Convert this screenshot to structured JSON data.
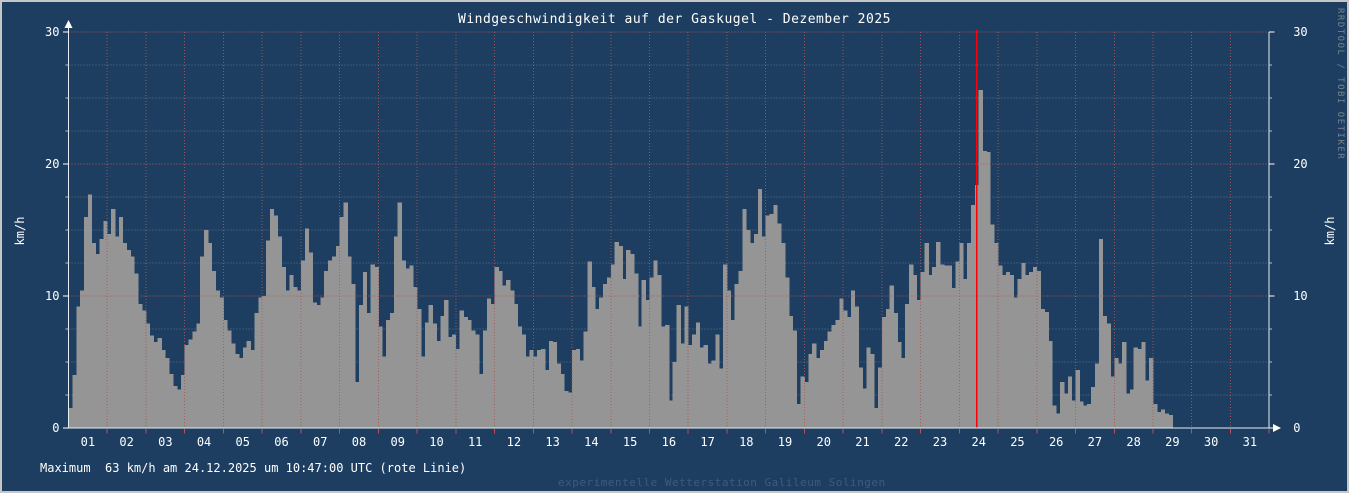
{
  "title": "Windgeschwindigkeit auf der Gaskugel - Dezember 2025",
  "y_axis": {
    "unit_label": "km/h",
    "major_ticks": [
      0,
      10,
      20,
      30
    ],
    "minor_step": 2.5,
    "max": 30
  },
  "x_axis": {
    "day_labels": [
      "01",
      "02",
      "03",
      "04",
      "05",
      "06",
      "07",
      "08",
      "09",
      "10",
      "11",
      "12",
      "13",
      "14",
      "15",
      "16",
      "17",
      "18",
      "19",
      "20",
      "21",
      "22",
      "23",
      "24",
      "25",
      "26",
      "27",
      "28",
      "29",
      "30",
      "31"
    ]
  },
  "footer": {
    "max_text": "Maximum  63 km/h am 24.12.2025 um 10:47:00 UTC (rote Linie)",
    "station_text": "experimentelle Wetterstation Galileum Solingen"
  },
  "watermark": "RRDTOOL / TOBI OETIKER",
  "colors": {
    "background": "#1d3e61",
    "border": "#c6c6c6",
    "area_fill": "#959595",
    "axis": "#e8eef2",
    "grid_minor": "#8b9fb3",
    "grid_major_red": "#c05858",
    "grid_day_red": "#a65959",
    "tick_red": "#cf4a4a",
    "max_line": "#fb0006",
    "text": "#ffffff",
    "station_text": "#3b5c80",
    "rrd_watermark": "#78848e"
  },
  "chart_data": {
    "type": "area",
    "title": "Windgeschwindigkeit auf der Gaskugel - Dezember 2025",
    "ylabel": "km/h",
    "ylim": [
      0,
      30
    ],
    "x_range_days": [
      0,
      31
    ],
    "grid": {
      "x_major_every_days": 1,
      "y_major_every": 10,
      "y_minor_every": 2.5,
      "style": "dotted"
    },
    "legend_position": "none",
    "sample_step_days": 0.1,
    "data_start_day": 0.0,
    "data_end_day": 28.45,
    "values_kmh": [
      1.5,
      4.0,
      9.2,
      10.4,
      16.0,
      17.7,
      14.0,
      13.2,
      14.3,
      15.7,
      14.7,
      16.6,
      14.5,
      16.0,
      14.0,
      13.5,
      13.0,
      11.7,
      9.4,
      8.9,
      7.9,
      7.0,
      6.5,
      6.8,
      5.9,
      5.3,
      4.1,
      3.2,
      2.9,
      4.0,
      6.3,
      6.7,
      7.3,
      7.9,
      13.0,
      15.0,
      14.0,
      11.9,
      10.4,
      9.9,
      8.2,
      7.4,
      6.4,
      5.6,
      5.3,
      6.1,
      6.6,
      5.9,
      8.7,
      9.9,
      10.0,
      14.2,
      16.6,
      16.1,
      14.5,
      12.2,
      10.4,
      11.6,
      10.7,
      10.4,
      12.7,
      15.1,
      13.3,
      9.5,
      9.3,
      9.9,
      11.9,
      12.7,
      13.0,
      13.8,
      16.0,
      17.1,
      13.0,
      10.9,
      3.5,
      9.3,
      11.8,
      8.7,
      12.4,
      12.2,
      7.7,
      5.4,
      8.2,
      8.7,
      14.5,
      17.1,
      12.7,
      12.1,
      12.3,
      10.7,
      9.0,
      5.4,
      8.0,
      9.3,
      7.9,
      6.6,
      8.5,
      9.7,
      6.9,
      7.1,
      6.0,
      8.9,
      8.4,
      8.2,
      7.4,
      7.1,
      4.1,
      7.4,
      9.8,
      9.4,
      12.2,
      11.9,
      10.8,
      11.2,
      10.4,
      9.4,
      7.7,
      7.1,
      5.4,
      5.9,
      5.4,
      5.9,
      6.0,
      4.4,
      6.6,
      6.5,
      4.9,
      4.1,
      2.8,
      2.7,
      5.9,
      6.0,
      5.1,
      7.3,
      12.6,
      10.7,
      9.0,
      9.9,
      10.9,
      11.4,
      12.4,
      14.1,
      13.8,
      11.3,
      13.5,
      13.2,
      11.7,
      7.7,
      11.2,
      9.7,
      11.4,
      12.7,
      11.6,
      7.7,
      7.8,
      2.1,
      5.0,
      9.3,
      6.4,
      9.2,
      6.3,
      7.1,
      8.0,
      6.1,
      6.3,
      4.9,
      5.1,
      7.1,
      4.5,
      12.4,
      10.4,
      8.2,
      10.9,
      11.9,
      16.6,
      15.0,
      14.0,
      14.7,
      18.1,
      14.5,
      16.1,
      16.2,
      16.9,
      15.5,
      14.0,
      11.4,
      8.5,
      7.4,
      1.8,
      3.9,
      3.5,
      5.6,
      6.4,
      5.3,
      5.9,
      6.6,
      7.3,
      7.8,
      8.2,
      9.8,
      8.9,
      8.4,
      10.4,
      9.2,
      4.6,
      3.0,
      6.1,
      5.6,
      1.5,
      4.6,
      8.4,
      9.0,
      10.8,
      8.7,
      6.5,
      5.3,
      9.4,
      12.4,
      11.6,
      9.7,
      11.8,
      14.0,
      11.6,
      12.2,
      14.1,
      12.4,
      12.3,
      12.3,
      10.6,
      12.6,
      14.0,
      11.3,
      14.0,
      16.9,
      18.4,
      25.6,
      21.0,
      20.9,
      15.4,
      14.0,
      12.3,
      11.6,
      11.8,
      11.6,
      9.9,
      11.3,
      12.5,
      11.6,
      11.8,
      12.2,
      11.9,
      9.0,
      8.8,
      6.6,
      1.7,
      1.1,
      3.5,
      2.6,
      3.9,
      2.1,
      4.4,
      2.0,
      1.7,
      1.8,
      3.1,
      4.9,
      14.3,
      8.5,
      7.9,
      3.9,
      5.3,
      4.9,
      6.5,
      2.6,
      2.9,
      6.1,
      6.0,
      6.5,
      3.6,
      5.3,
      1.8,
      1.2,
      1.4,
      1.1,
      1.0
    ],
    "max_annotation": {
      "value_kmh": 63,
      "datetime": "24.12.2025 10:47:00 UTC",
      "line_day_position": 23.449,
      "note": "rote Linie"
    }
  }
}
